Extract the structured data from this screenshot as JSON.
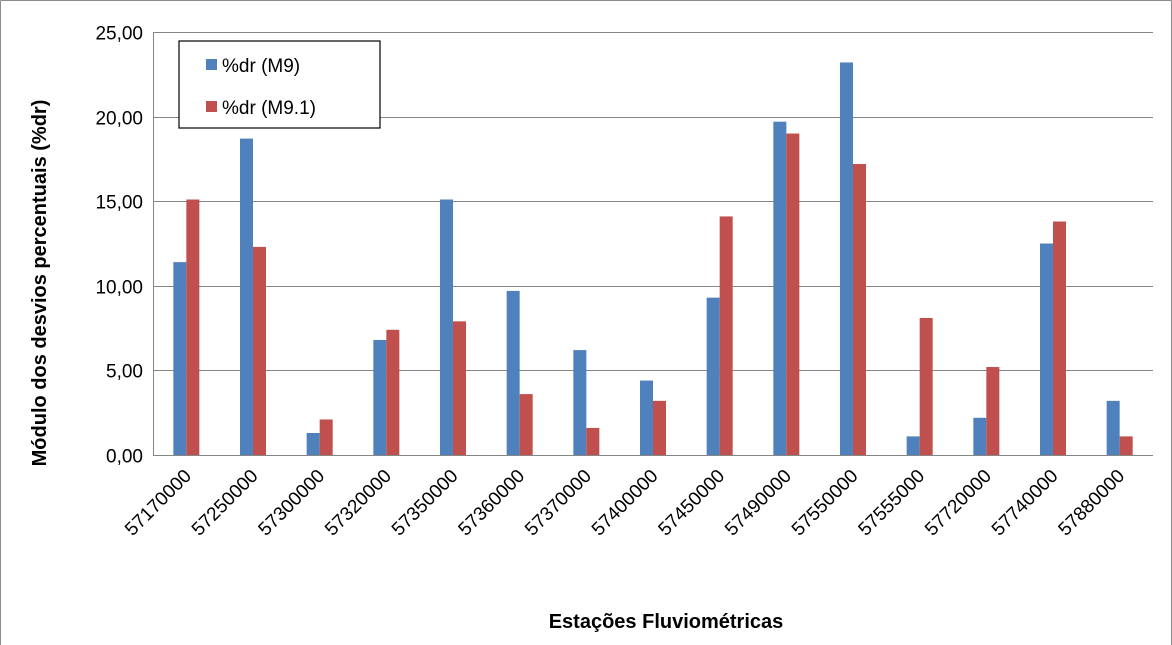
{
  "chart_data": {
    "type": "bar",
    "categories": [
      "57170000",
      "57250000",
      "57300000",
      "57320000",
      "57350000",
      "57360000",
      "57370000",
      "57400000",
      "57450000",
      "57490000",
      "57550000",
      "57555000",
      "57720000",
      "57740000",
      "57880000"
    ],
    "series": [
      {
        "name": "%dr (M9)",
        "color": "#4f81bd",
        "values": [
          11.4,
          18.7,
          1.3,
          6.8,
          15.1,
          9.7,
          6.2,
          4.4,
          9.3,
          19.7,
          23.2,
          1.1,
          2.2,
          12.5,
          3.2
        ]
      },
      {
        "name": "%dr (M9.1)",
        "color": "#c0504d",
        "values": [
          15.1,
          12.3,
          2.1,
          7.4,
          7.9,
          3.6,
          1.6,
          3.2,
          14.1,
          19.0,
          17.2,
          8.1,
          5.2,
          13.8,
          1.1
        ]
      }
    ],
    "title": "",
    "xlabel": "Estações Fluviométricas",
    "ylabel": "Módulo dos desvios percentuais (%dr)",
    "ylim": [
      0,
      25
    ],
    "yticks": [
      "0,00",
      "5,00",
      "10,00",
      "15,00",
      "20,00",
      "25,00"
    ],
    "grid": true,
    "legend_position": "top-left"
  }
}
